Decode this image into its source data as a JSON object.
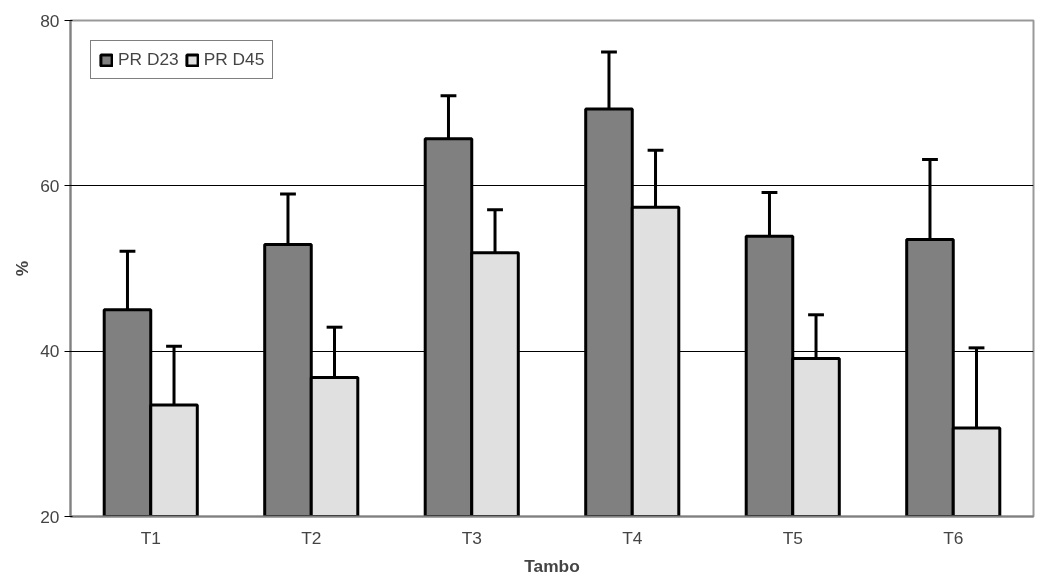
{
  "chart_data": {
    "type": "bar",
    "xlabel": "Tambo",
    "ylabel": "%",
    "categories": [
      "T1",
      "T2",
      "T3",
      "T4",
      "T5",
      "T6"
    ],
    "series": [
      {
        "name": "PR D23",
        "color": "#808080",
        "values": [
          45.0,
          52.9,
          65.7,
          69.3,
          53.9,
          53.5
        ],
        "errors": [
          [
            45.0,
            52.1
          ],
          [
            52.9,
            59.0
          ],
          [
            65.7,
            70.9
          ],
          [
            69.3,
            76.2
          ],
          [
            53.9,
            59.2
          ],
          [
            53.5,
            63.2
          ]
        ]
      },
      {
        "name": "PR D45",
        "color": "#e0e0e0",
        "values": [
          33.5,
          36.8,
          51.9,
          57.4,
          39.1,
          30.7
        ],
        "errors": [
          [
            33.5,
            40.6
          ],
          [
            36.8,
            42.9
          ],
          [
            51.9,
            57.1
          ],
          [
            57.4,
            64.3
          ],
          [
            39.1,
            44.4
          ],
          [
            30.7,
            40.4
          ]
        ]
      }
    ],
    "ylim": [
      20,
      80
    ],
    "yticks": [
      20,
      40,
      60,
      80
    ],
    "grid": "y",
    "legend": "top left"
  }
}
